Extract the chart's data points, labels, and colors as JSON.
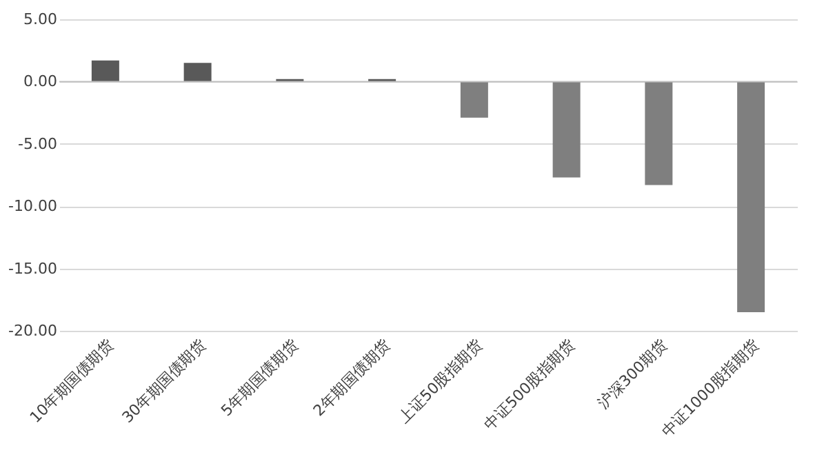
{
  "chart_data": {
    "type": "bar",
    "categories": [
      "10年期国债期货",
      "30年期国债期货",
      "5年期国债期货",
      "2年期国债期货",
      "上证50股指期货",
      "中证500股指期货",
      "沪深300期货",
      "中证1000股指期货"
    ],
    "values": [
      1.7,
      1.5,
      0.2,
      0.2,
      -2.9,
      -7.7,
      -8.3,
      -18.5
    ],
    "colors": [
      "#595959",
      "#595959",
      "#595959",
      "#595959",
      "#7f7f7f",
      "#7f7f7f",
      "#7f7f7f",
      "#7f7f7f"
    ],
    "ylim": [
      -20,
      5
    ],
    "yticks": [
      {
        "value": 5,
        "label": "5.00"
      },
      {
        "value": 0,
        "label": "0.00"
      },
      {
        "value": -5,
        "label": "-5.00"
      },
      {
        "value": -10,
        "label": "-10.00"
      },
      {
        "value": -15,
        "label": "-15.00"
      },
      {
        "value": -20,
        "label": "-20.00"
      }
    ],
    "grid": "y"
  }
}
